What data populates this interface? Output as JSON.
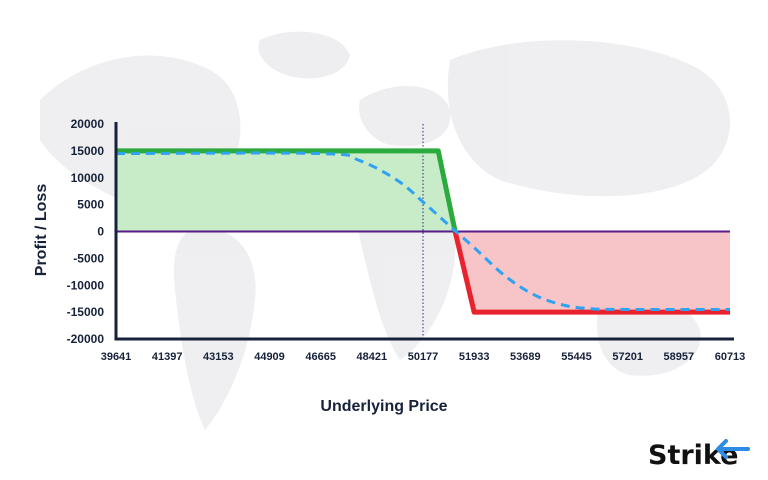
{
  "chart_data": {
    "type": "line",
    "title": "",
    "xlabel": "Underlying Price",
    "ylabel": "Profit / Loss",
    "x_ticks": [
      "39641",
      "41397",
      "43153",
      "44909",
      "46665",
      "48421",
      "50177",
      "51933",
      "53689",
      "55445",
      "57201",
      "58957",
      "60713"
    ],
    "y_ticks": [
      20000,
      15000,
      10000,
      5000,
      0,
      -5000,
      -10000,
      -15000,
      -20000
    ],
    "xlim": [
      39641,
      60713
    ],
    "ylim": [
      -20000,
      20000
    ],
    "grid": false,
    "current_price_marker": 50177,
    "series": [
      {
        "style": "solid",
        "color": "#2bab3d",
        "x": [
          39641,
          50700,
          51280,
          51933,
          60713
        ],
        "y": [
          15000,
          15000,
          0,
          -15000,
          -15000
        ]
      },
      {
        "style": "dashed",
        "color": "#2ea3f2",
        "x": [
          39641,
          46665,
          48000,
          49300,
          50177,
          51100,
          51933,
          53000,
          54000,
          55000,
          56000,
          57201,
          58957,
          60713
        ],
        "y": [
          14500,
          14500,
          13200,
          9500,
          5500,
          1000,
          -3000,
          -8300,
          -11800,
          -13700,
          -14400,
          -14500,
          -14500,
          -14500
        ]
      }
    ],
    "zero_line_color": "#5a1a8a",
    "profit_fill_color": "#c8ebc8",
    "loss_fill_color": "#f7c4c8"
  },
  "brand": {
    "name": "Strike"
  }
}
